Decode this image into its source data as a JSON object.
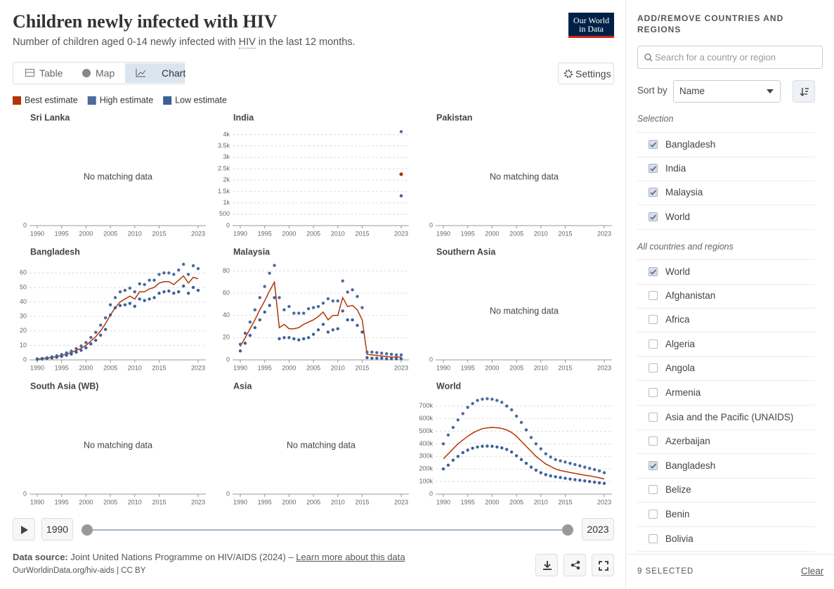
{
  "header": {
    "title": "Children newly infected with HIV",
    "subtitle": {
      "before": "Number of children aged 0-14 newly infected with ",
      "term": "HIV",
      "after": " in the last 12 months."
    },
    "logo": [
      "Our World",
      "in Data"
    ]
  },
  "tabs": [
    "Table",
    "Map",
    "Chart"
  ],
  "settings": "Settings",
  "chart_data": [
    {
      "type": "line",
      "title": "Sri Lanka",
      "message": "No matching data",
      "xlim": [
        1990,
        2023
      ],
      "xticks": [
        1990,
        1995,
        2000,
        2005,
        2010,
        2015,
        2023
      ],
      "yticks": [
        0
      ],
      "series": []
    },
    {
      "type": "line",
      "title": "India",
      "xlim": [
        1990,
        2023
      ],
      "xticks": [
        1990,
        1995,
        2000,
        2005,
        2010,
        2015,
        2023
      ],
      "ylim": [
        0,
        4200
      ],
      "yticks": [
        0,
        500,
        {
          "value": 1000,
          "label": "1k"
        },
        {
          "value": 1500,
          "label": "1.5k"
        },
        {
          "value": 2000,
          "label": "2k"
        },
        {
          "value": 2500,
          "label": "2.5k"
        },
        {
          "value": 3000,
          "label": "3k"
        },
        {
          "value": 3500,
          "label": "3.5k"
        },
        {
          "value": 4000,
          "label": "4k"
        }
      ],
      "grid": true,
      "x": [
        2023
      ],
      "series": [
        {
          "name": "Best estimate",
          "color": "#b13507",
          "style": "line",
          "values": [
            2260
          ]
        },
        {
          "name": "High estimate",
          "color": "#4c6a9c",
          "style": "dots",
          "values": [
            4130
          ]
        },
        {
          "name": "Low estimate",
          "color": "#3d5f9a",
          "style": "dots",
          "values": [
            1310
          ]
        }
      ]
    },
    {
      "type": "line",
      "title": "Pakistan",
      "message": "No matching data",
      "xlim": [
        1990,
        2023
      ],
      "xticks": [
        1990,
        1995,
        2000,
        2005,
        2010,
        2015,
        2023
      ],
      "yticks": [
        0
      ],
      "series": []
    },
    {
      "type": "line",
      "title": "Bangladesh",
      "xlim": [
        1990,
        2023
      ],
      "xticks": [
        1990,
        1995,
        2000,
        2005,
        2010,
        2015,
        2023
      ],
      "ylim": [
        0,
        66
      ],
      "yticks": [
        0,
        10,
        20,
        30,
        40,
        50,
        60
      ],
      "grid": true,
      "x": [
        1990,
        1991,
        1992,
        1993,
        1994,
        1995,
        1996,
        1997,
        1998,
        1999,
        2000,
        2001,
        2002,
        2003,
        2004,
        2005,
        2006,
        2007,
        2008,
        2009,
        2010,
        2011,
        2012,
        2013,
        2014,
        2015,
        2016,
        2017,
        2018,
        2019,
        2020,
        2021,
        2022,
        2023
      ],
      "series": [
        {
          "name": "Best estimate",
          "color": "#b13507",
          "style": "line",
          "values": [
            0.5,
            0.8,
            1.2,
            1.7,
            2.3,
            3,
            4,
            5,
            6.5,
            8,
            10,
            13,
            16,
            20,
            25,
            31,
            36,
            40,
            42,
            44,
            42,
            47,
            47,
            49,
            50,
            53,
            54,
            54,
            52,
            55,
            58,
            53,
            57,
            56
          ]
        },
        {
          "name": "High estimate",
          "color": "#4c6a9c",
          "style": "dots",
          "values": [
            0.7,
            1,
            1.5,
            2.1,
            2.8,
            3.7,
            4.8,
            6,
            7.8,
            9.6,
            12,
            15.5,
            19,
            24,
            29,
            38,
            43,
            47,
            48,
            49.5,
            47,
            52.5,
            52,
            55,
            55,
            59,
            60,
            60,
            59,
            62,
            66,
            59,
            65,
            63
          ]
        },
        {
          "name": "Low estimate",
          "color": "#3d5f9a",
          "style": "dots",
          "values": [
            0.3,
            0.6,
            0.9,
            1.3,
            1.8,
            2.4,
            3.2,
            4,
            5.3,
            6.6,
            8.3,
            11,
            13.5,
            17,
            21,
            31,
            36,
            37.5,
            38,
            39,
            37,
            42,
            41,
            42,
            43,
            46,
            47,
            47.5,
            46,
            47,
            51,
            46,
            50,
            48
          ]
        }
      ]
    },
    {
      "type": "line",
      "title": "Malaysia",
      "xlim": [
        1990,
        2023
      ],
      "xticks": [
        1990,
        1995,
        2000,
        2005,
        2010,
        2015,
        2023
      ],
      "ylim": [
        0,
        86
      ],
      "yticks": [
        0,
        20,
        40,
        60,
        80
      ],
      "grid": true,
      "x": [
        1990,
        1991,
        1992,
        1993,
        1994,
        1995,
        1996,
        1997,
        1998,
        1999,
        2000,
        2001,
        2002,
        2003,
        2004,
        2005,
        2006,
        2007,
        2008,
        2009,
        2010,
        2011,
        2012,
        2013,
        2014,
        2015,
        2016,
        2017,
        2018,
        2019,
        2020,
        2021,
        2022,
        2023
      ],
      "series": [
        {
          "name": "Best estimate",
          "color": "#b13507",
          "style": "line",
          "values": [
            12,
            20,
            28,
            36,
            45,
            53,
            62,
            70,
            29,
            32,
            28,
            28,
            29,
            32,
            34,
            36,
            39,
            43,
            36,
            40,
            40,
            56,
            48,
            49,
            45,
            36,
            5,
            4.5,
            4,
            3.5,
            3,
            2.5,
            2.5,
            2.5
          ]
        },
        {
          "name": "High estimate",
          "color": "#4c6a9c",
          "style": "dots",
          "values": [
            14,
            24,
            34,
            45,
            56,
            66,
            78,
            85,
            56,
            45,
            48,
            42,
            42,
            42,
            46,
            47,
            48,
            51,
            55,
            53,
            53,
            71,
            61,
            63,
            57,
            47,
            7,
            7,
            6.5,
            6,
            5.5,
            5,
            4.5,
            4.5
          ]
        },
        {
          "name": "Low estimate",
          "color": "#3d5f9a",
          "style": "dots",
          "values": [
            8,
            15,
            22,
            29,
            36,
            43,
            49,
            56,
            19,
            20,
            20,
            19,
            18,
            19,
            20,
            23,
            27,
            32,
            25,
            27,
            28,
            44,
            36,
            36,
            31,
            25,
            2,
            1.5,
            1.5,
            1.5,
            1,
            1,
            1,
            1
          ]
        }
      ]
    },
    {
      "type": "line",
      "title": "Southern Asia",
      "message": "No matching data",
      "xlim": [
        1990,
        2023
      ],
      "xticks": [
        1990,
        1995,
        2000,
        2005,
        2010,
        2015,
        2023
      ],
      "yticks": [
        0
      ],
      "series": []
    },
    {
      "type": "line",
      "title": "South Asia (WB)",
      "message": "No matching data",
      "xlim": [
        1990,
        2023
      ],
      "xticks": [
        1990,
        1995,
        2000,
        2005,
        2010,
        2015,
        2023
      ],
      "yticks": [
        0
      ],
      "series": []
    },
    {
      "type": "line",
      "title": "Asia",
      "message": "No matching data",
      "xlim": [
        1990,
        2023
      ],
      "xticks": [
        1990,
        1995,
        2000,
        2005,
        2010,
        2015,
        2023
      ],
      "yticks": [
        0
      ],
      "series": []
    },
    {
      "type": "line",
      "title": "World",
      "xlim": [
        1990,
        2023
      ],
      "xticks": [
        1990,
        1995,
        2000,
        2005,
        2010,
        2015,
        2023
      ],
      "ylim": [
        0,
        760000
      ],
      "yticks": [
        0,
        {
          "value": 100000,
          "label": "100k"
        },
        {
          "value": 200000,
          "label": "200k"
        },
        {
          "value": 300000,
          "label": "300k"
        },
        {
          "value": 400000,
          "label": "400k"
        },
        {
          "value": 500000,
          "label": "500k"
        },
        {
          "value": 600000,
          "label": "600k"
        },
        {
          "value": 700000,
          "label": "700k"
        }
      ],
      "grid": true,
      "x": [
        1990,
        1991,
        1992,
        1993,
        1994,
        1995,
        1996,
        1997,
        1998,
        1999,
        2000,
        2001,
        2002,
        2003,
        2004,
        2005,
        2006,
        2007,
        2008,
        2009,
        2010,
        2011,
        2012,
        2013,
        2014,
        2015,
        2016,
        2017,
        2018,
        2019,
        2020,
        2021,
        2022,
        2023
      ],
      "series": [
        {
          "name": "Best estimate",
          "color": "#b13507",
          "style": "line",
          "values": [
            280000,
            320000,
            360000,
            400000,
            430000,
            460000,
            485000,
            505000,
            520000,
            527000,
            530000,
            528000,
            522000,
            510000,
            490000,
            460000,
            420000,
            380000,
            340000,
            300000,
            270000,
            240000,
            220000,
            200000,
            188000,
            180000,
            172000,
            165000,
            158000,
            150000,
            145000,
            138000,
            130000,
            120000
          ]
        },
        {
          "name": "High estimate",
          "color": "#4c6a9c",
          "style": "dots",
          "values": [
            400000,
            470000,
            530000,
            590000,
            640000,
            690000,
            720000,
            745000,
            755000,
            758000,
            755000,
            745000,
            730000,
            700000,
            670000,
            620000,
            570000,
            510000,
            450000,
            400000,
            360000,
            320000,
            295000,
            275000,
            265000,
            255000,
            245000,
            235000,
            225000,
            215000,
            205000,
            195000,
            185000,
            170000
          ]
        },
        {
          "name": "Low estimate",
          "color": "#3d5f9a",
          "style": "dots",
          "values": [
            200000,
            230000,
            270000,
            300000,
            330000,
            350000,
            365000,
            375000,
            380000,
            382000,
            380000,
            375000,
            368000,
            355000,
            335000,
            305000,
            275000,
            245000,
            215000,
            190000,
            170000,
            155000,
            145000,
            138000,
            132000,
            126000,
            120000,
            115000,
            110000,
            105000,
            100000,
            95000,
            90000,
            85000
          ]
        }
      ]
    }
  ],
  "timeline": {
    "start": 1990,
    "end": 2023
  },
  "footer": {
    "source_label": "Data source:",
    "source": "Joint United Nations Programme on HIV/AIDS (2024) – ",
    "link": "Learn more about this data",
    "url": "OurWorldinData.org/hiv-aids | CC BY"
  },
  "sidebar": {
    "title": "ADD/REMOVE COUNTRIES AND REGIONS",
    "search": "Search for a country or region",
    "sort_label": "Sort by",
    "sort_value": "Name",
    "selection_label": "Selection",
    "selection": [
      {
        "name": "Bangladesh",
        "checked": true
      },
      {
        "name": "India",
        "checked": true
      },
      {
        "name": "Malaysia",
        "checked": true
      },
      {
        "name": "World",
        "checked": true
      }
    ],
    "all_label": "All countries and regions",
    "all": [
      {
        "name": "World",
        "checked": true
      },
      {
        "name": "Afghanistan",
        "checked": false
      },
      {
        "name": "Africa",
        "checked": false
      },
      {
        "name": "Algeria",
        "checked": false
      },
      {
        "name": "Angola",
        "checked": false
      },
      {
        "name": "Armenia",
        "checked": false
      },
      {
        "name": "Asia and the Pacific (UNAIDS)",
        "checked": false
      },
      {
        "name": "Azerbaijan",
        "checked": false
      },
      {
        "name": "Bangladesh",
        "checked": true
      },
      {
        "name": "Belize",
        "checked": false
      },
      {
        "name": "Benin",
        "checked": false
      },
      {
        "name": "Bolivia",
        "checked": false
      }
    ],
    "selected_count": "9 SELECTED",
    "clear": "Clear"
  }
}
